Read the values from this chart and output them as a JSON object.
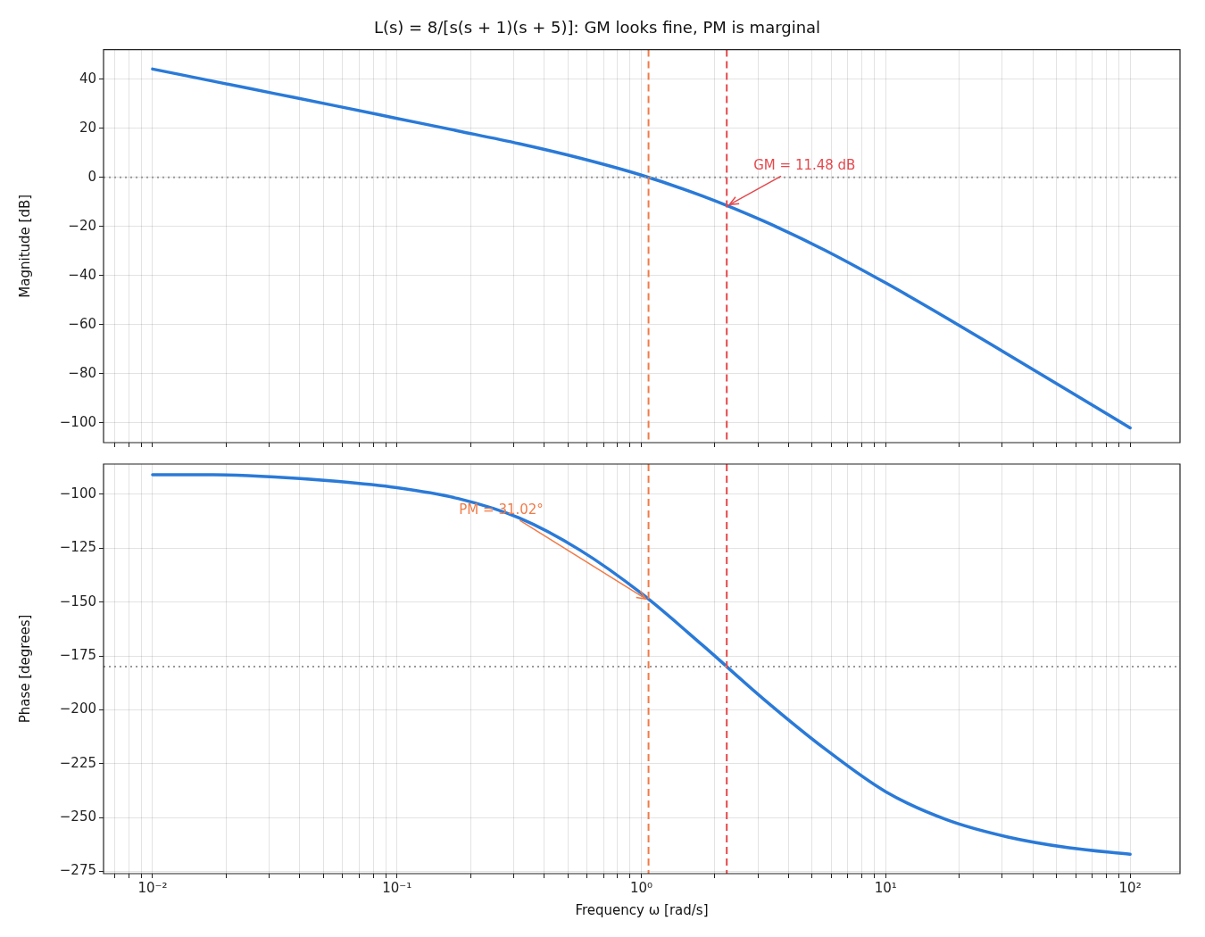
{
  "chart_data": [
    {
      "type": "line",
      "title": "L(s) = 8/[s(s + 1)(s + 5)]: GM looks fine, PM is marginal",
      "ylabel": "Magnitude [dB]",
      "log": "x",
      "grid": true,
      "legend": false,
      "tick_labels": "y",
      "x": [
        0.01,
        0.01778,
        0.03162,
        0.05623,
        0.1,
        0.1778,
        0.3162,
        0.5623,
        1,
        1.778,
        3.162,
        5.623,
        10,
        17.78,
        31.62,
        56.23,
        100
      ],
      "series": [
        {
          "color": "#2a7ad8",
          "values": [
            44.1,
            39.1,
            34.1,
            29.1,
            24.0,
            18.9,
            13.7,
            7.8,
            0.9,
            -7.6,
            -17.8,
            -29.6,
            -43.0,
            -57.3,
            -72.1,
            -87.0,
            -102.0
          ]
        }
      ],
      "xlim": [
        0.0063,
        160
      ],
      "xticks": [
        {
          "value": 0.007,
          "label": null
        },
        {
          "value": 0.008,
          "label": null
        },
        {
          "value": 0.009,
          "label": null
        },
        {
          "value": 0.01,
          "label": null
        },
        {
          "value": 0.02,
          "label": null
        },
        {
          "value": 0.03,
          "label": null
        },
        {
          "value": 0.04,
          "label": null
        },
        {
          "value": 0.05,
          "label": null
        },
        {
          "value": 0.06,
          "label": null
        },
        {
          "value": 0.07,
          "label": null
        },
        {
          "value": 0.08,
          "label": null
        },
        {
          "value": 0.09,
          "label": null
        },
        {
          "value": 0.1,
          "label": null
        },
        {
          "value": 0.2,
          "label": null
        },
        {
          "value": 0.3,
          "label": null
        },
        {
          "value": 0.4,
          "label": null
        },
        {
          "value": 0.5,
          "label": null
        },
        {
          "value": 0.6,
          "label": null
        },
        {
          "value": 0.7,
          "label": null
        },
        {
          "value": 0.8,
          "label": null
        },
        {
          "value": 0.9,
          "label": null
        },
        {
          "value": 1,
          "label": null
        },
        {
          "value": 2,
          "label": null
        },
        {
          "value": 3,
          "label": null
        },
        {
          "value": 4,
          "label": null
        },
        {
          "value": 5,
          "label": null
        },
        {
          "value": 6,
          "label": null
        },
        {
          "value": 7,
          "label": null
        },
        {
          "value": 8,
          "label": null
        },
        {
          "value": 9,
          "label": null
        },
        {
          "value": 10,
          "label": null
        },
        {
          "value": 20,
          "label": null
        },
        {
          "value": 30,
          "label": null
        },
        {
          "value": 40,
          "label": null
        },
        {
          "value": 50,
          "label": null
        },
        {
          "value": 60,
          "label": null
        },
        {
          "value": 70,
          "label": null
        },
        {
          "value": 80,
          "label": null
        },
        {
          "value": 90,
          "label": null
        },
        {
          "value": 100,
          "label": null
        }
      ],
      "ylim": [
        -108,
        52
      ],
      "yticks": [
        -100,
        -80,
        -60,
        -40,
        -20,
        0,
        20,
        40
      ],
      "ref_lines": [
        {
          "axis": "x",
          "value": 1.07,
          "color": "#f07b48",
          "line_style": "dashed"
        },
        {
          "axis": "x",
          "value": 2.236,
          "color": "#e4484c",
          "line_style": "dashed"
        },
        {
          "axis": "y",
          "value": 0,
          "color": "#999999",
          "line_style": "dotted"
        }
      ],
      "annotations": [
        {
          "text": "GM = 11.48 dB",
          "x": 2.236,
          "y": -11.48
        }
      ]
    },
    {
      "type": "line",
      "xlabel": "Frequency ω [rad/s]",
      "ylabel": "Phase [degrees]",
      "log": "x",
      "grid": true,
      "legend": false,
      "x": [
        0.01,
        0.01778,
        0.03162,
        0.05623,
        0.1,
        0.1778,
        0.3162,
        0.5623,
        1,
        1.778,
        3.162,
        5.623,
        10,
        17.78,
        31.62,
        56.23,
        100
      ],
      "series": [
        {
          "color": "#2a7ad8",
          "values": [
            -91,
            -91,
            -92,
            -94,
            -97,
            -102,
            -111,
            -126,
            -146,
            -170,
            -195,
            -218,
            -238,
            -251,
            -259,
            -264,
            -267
          ]
        }
      ],
      "xlim": [
        0.0063,
        160
      ],
      "xticks": [
        {
          "value": 0.007,
          "label": null
        },
        {
          "value": 0.008,
          "label": null
        },
        {
          "value": 0.009,
          "label": null
        },
        {
          "value": 0.01,
          "label": "10⁻²"
        },
        {
          "value": 0.02,
          "label": null
        },
        {
          "value": 0.03,
          "label": null
        },
        {
          "value": 0.04,
          "label": null
        },
        {
          "value": 0.05,
          "label": null
        },
        {
          "value": 0.06,
          "label": null
        },
        {
          "value": 0.07,
          "label": null
        },
        {
          "value": 0.08,
          "label": null
        },
        {
          "value": 0.09,
          "label": null
        },
        {
          "value": 0.1,
          "label": "10⁻¹"
        },
        {
          "value": 0.2,
          "label": null
        },
        {
          "value": 0.3,
          "label": null
        },
        {
          "value": 0.4,
          "label": null
        },
        {
          "value": 0.5,
          "label": null
        },
        {
          "value": 0.6,
          "label": null
        },
        {
          "value": 0.7,
          "label": null
        },
        {
          "value": 0.8,
          "label": null
        },
        {
          "value": 0.9,
          "label": null
        },
        {
          "value": 1,
          "label": "10⁰"
        },
        {
          "value": 2,
          "label": null
        },
        {
          "value": 3,
          "label": null
        },
        {
          "value": 4,
          "label": null
        },
        {
          "value": 5,
          "label": null
        },
        {
          "value": 6,
          "label": null
        },
        {
          "value": 7,
          "label": null
        },
        {
          "value": 8,
          "label": null
        },
        {
          "value": 9,
          "label": null
        },
        {
          "value": 10,
          "label": "10¹"
        },
        {
          "value": 20,
          "label": null
        },
        {
          "value": 30,
          "label": null
        },
        {
          "value": 40,
          "label": null
        },
        {
          "value": 50,
          "label": null
        },
        {
          "value": 60,
          "label": null
        },
        {
          "value": 70,
          "label": null
        },
        {
          "value": 80,
          "label": null
        },
        {
          "value": 90,
          "label": null
        },
        {
          "value": 100,
          "label": "10²"
        }
      ],
      "ylim": [
        -276,
        -86
      ],
      "yticks": [
        -275,
        -250,
        -225,
        -200,
        -175,
        -150,
        -125,
        -100
      ],
      "ref_lines": [
        {
          "axis": "x",
          "value": 1.07,
          "color": "#f07b48",
          "line_style": "dashed"
        },
        {
          "axis": "x",
          "value": 2.236,
          "color": "#e4484c",
          "line_style": "dashed"
        },
        {
          "axis": "y",
          "value": -180,
          "color": "#999999",
          "line_style": "dotted"
        }
      ],
      "annotations": [
        {
          "text": "PM = 31.02°",
          "x": 1.07,
          "y": -148.98
        }
      ]
    }
  ]
}
